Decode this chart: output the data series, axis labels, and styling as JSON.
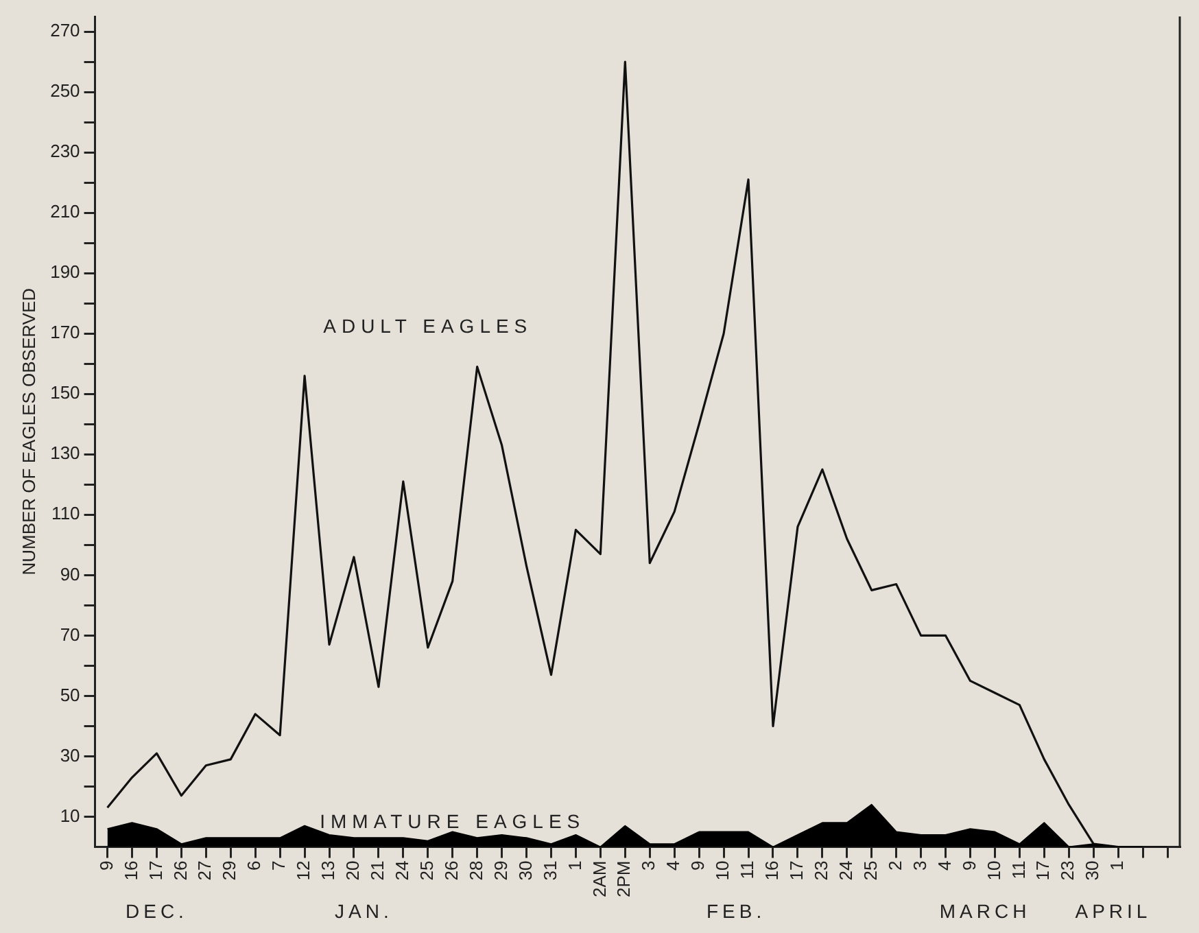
{
  "chart_data": {
    "type": "line",
    "ylabel": "NUMBER OF EAGLES OBSERVED",
    "categories": [
      "9",
      "16",
      "17",
      "26",
      "27",
      "29",
      "6",
      "7",
      "12",
      "13",
      "20",
      "21",
      "24",
      "25",
      "26",
      "28",
      "29",
      "30",
      "31",
      "1",
      "2AM",
      "2PM",
      "3",
      "4",
      "9",
      "10",
      "11",
      "16",
      "17",
      "23",
      "24",
      "25",
      "2",
      "3",
      "4",
      "9",
      "10",
      "11",
      "17",
      "23",
      "30",
      "1",
      null,
      null
    ],
    "series": [
      {
        "name": "ADULT EAGLES",
        "type": "line",
        "color": "#111111",
        "values": [
          13,
          23,
          31,
          17,
          27,
          29,
          44,
          37,
          156,
          67,
          96,
          53,
          121,
          66,
          88,
          159,
          133,
          93,
          57,
          105,
          97,
          260,
          94,
          111,
          140,
          170,
          221,
          40,
          106,
          125,
          102,
          85,
          87,
          70,
          70,
          55,
          51,
          47,
          29,
          14,
          1,
          0,
          0,
          0
        ]
      },
      {
        "name": "IMMATURE EAGLES",
        "type": "area",
        "color": "#000000",
        "values": [
          6,
          8,
          6,
          1,
          3,
          3,
          3,
          3,
          7,
          4,
          3,
          3,
          3,
          2,
          5,
          3,
          4,
          3,
          1,
          4,
          0,
          7,
          1,
          1,
          5,
          5,
          5,
          0,
          4,
          8,
          8,
          14,
          5,
          4,
          4,
          6,
          5,
          1,
          8,
          0,
          1,
          0,
          0,
          null
        ]
      }
    ],
    "ylim": [
      0,
      275
    ],
    "yticks": [
      10,
      {
        "value": 20,
        "label": null
      },
      30,
      {
        "value": 40,
        "label": null
      },
      50,
      {
        "value": 60,
        "label": null
      },
      70,
      {
        "value": 80,
        "label": null
      },
      90,
      {
        "value": 100,
        "label": null
      },
      110,
      {
        "value": 120,
        "label": null
      },
      130,
      {
        "value": 140,
        "label": null
      },
      150,
      {
        "value": 160,
        "label": null
      },
      170,
      {
        "value": 180,
        "label": null
      },
      190,
      {
        "value": 200,
        "label": null
      },
      210,
      {
        "value": 220,
        "label": null
      },
      230,
      {
        "value": 240,
        "label": null
      },
      250,
      {
        "value": 260,
        "label": null
      },
      270
    ],
    "annotations": [
      "DEC.",
      "JAN.",
      "FEB.",
      "MARCH",
      "APRIL"
    ],
    "grid": false,
    "legend": false,
    "marker": "none",
    "line_style": "solid"
  }
}
